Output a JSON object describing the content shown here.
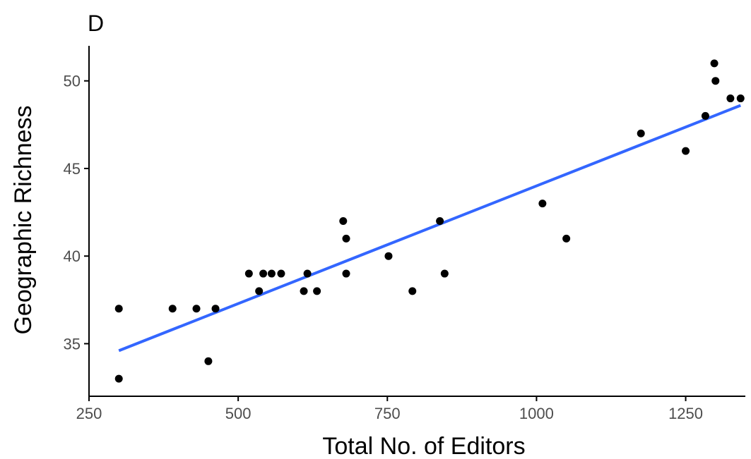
{
  "chart_data": {
    "type": "scatter",
    "title": "D",
    "xlabel": "Total No. of Editors",
    "ylabel": "Geographic Richness",
    "xlim": [
      250,
      1350
    ],
    "ylim": [
      32,
      52
    ],
    "xticks": [
      250,
      500,
      750,
      1000,
      1250
    ],
    "yticks": [
      35,
      40,
      45,
      50
    ],
    "xtick_labels": [
      "250",
      "500",
      "750",
      "1000",
      "1250"
    ],
    "ytick_labels": [
      "35",
      "40",
      "45",
      "50"
    ],
    "grid": false,
    "legend": "none",
    "colors": {
      "points": "#000000",
      "fit_line": "#3366ff",
      "axis": "#000000",
      "tick_text": "#4d4d4d"
    },
    "series": [
      {
        "x": [
          300,
          300,
          390,
          430,
          450,
          462,
          518,
          535,
          542,
          556,
          572,
          610,
          616,
          632,
          676,
          681,
          681,
          752,
          792,
          838,
          846,
          1010,
          1050,
          1175,
          1250,
          1283,
          1298,
          1300,
          1325,
          1342
        ],
        "y": [
          37,
          33,
          37,
          37,
          34,
          37,
          39,
          38,
          39,
          39,
          39,
          38,
          39,
          38,
          42,
          41,
          39,
          40,
          38,
          42,
          39,
          43,
          41,
          47,
          46,
          48,
          51,
          50,
          49,
          49
        ]
      }
    ],
    "fit_line": {
      "x": [
        300,
        1342
      ],
      "y": [
        34.6,
        48.6
      ]
    }
  }
}
